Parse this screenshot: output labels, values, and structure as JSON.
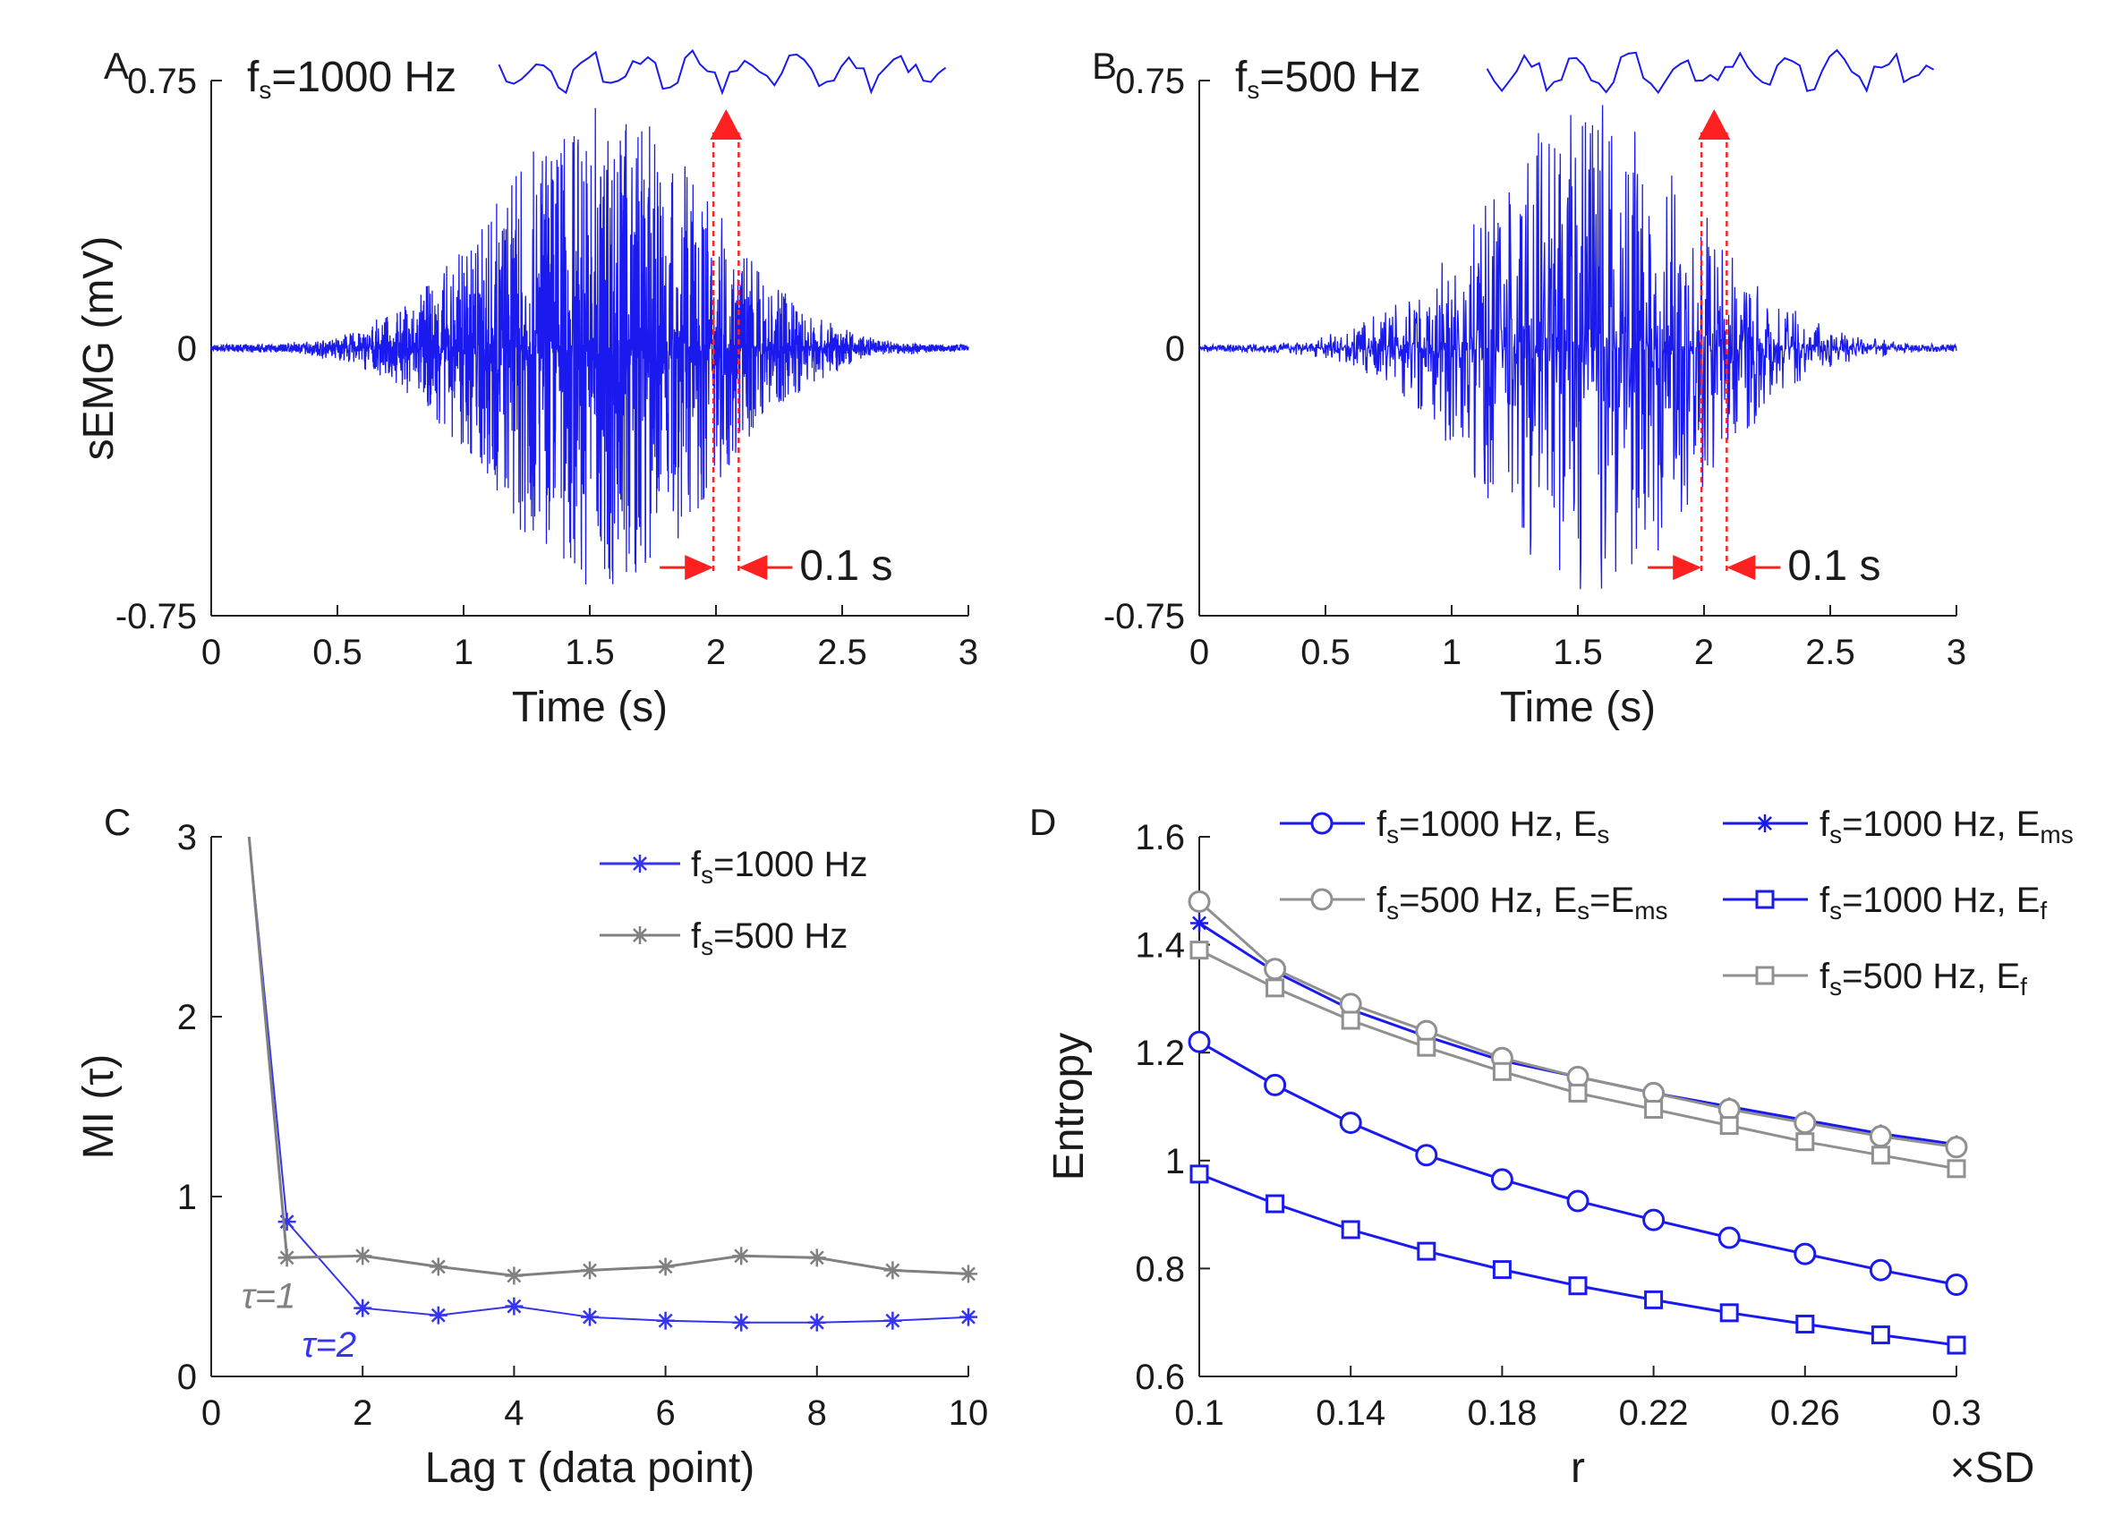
{
  "chart_data": [
    {
      "panel": "A",
      "type": "line",
      "xlabel": "Time (s)",
      "ylabel": "sEMG (mV)",
      "xlim": [
        0,
        3
      ],
      "ylim": [
        -0.75,
        0.75
      ],
      "xticks": [
        "0",
        "0.5",
        "1",
        "1.5",
        "2",
        "2.5",
        "3"
      ],
      "yticks": [
        "-0.75",
        "0",
        "0.75"
      ],
      "fs_label": "f",
      "fs_sub": "s",
      "fs_value": "=1000 Hz",
      "window_label": "0.1 s",
      "window_range": [
        1.99,
        2.09
      ],
      "signal_color": "#1a1aee",
      "marker_color": "#ff2020",
      "envelope": {
        "duration": 3.0,
        "peak_center": 1.55,
        "peak_amplitude": 0.55,
        "spread": 0.75
      }
    },
    {
      "panel": "B",
      "type": "line",
      "xlabel": "Time (s)",
      "ylabel": "",
      "xlim": [
        0,
        3
      ],
      "ylim": [
        -0.75,
        0.75
      ],
      "xticks": [
        "0",
        "0.5",
        "1",
        "1.5",
        "2",
        "2.5",
        "3"
      ],
      "yticks": [
        "-0.75",
        "0",
        "0.75"
      ],
      "fs_label": "f",
      "fs_sub": "s",
      "fs_value": "=500 Hz",
      "window_label": "0.1 s",
      "window_range": [
        1.99,
        2.09
      ],
      "signal_color": "#1a1aee",
      "marker_color": "#ff2020",
      "envelope": {
        "duration": 3.0,
        "peak_center": 1.55,
        "peak_amplitude": 0.55,
        "spread": 0.75
      }
    },
    {
      "panel": "C",
      "type": "line",
      "xlabel": "Lag τ (data point)",
      "ylabel": "MI (τ)",
      "xlim": [
        0,
        10
      ],
      "ylim": [
        0,
        3
      ],
      "xticks": [
        "0",
        "2",
        "4",
        "6",
        "8",
        "10"
      ],
      "yticks": [
        "0",
        "1",
        "2",
        "3"
      ],
      "series": [
        {
          "name_main": "f",
          "name_sub": "s",
          "name_rest": "=1000 Hz",
          "color": "#3535ee",
          "marker": "star",
          "x": [
            0.5,
            1,
            2,
            3,
            4,
            5,
            6,
            7,
            8,
            9,
            10
          ],
          "y": [
            3.0,
            0.86,
            0.38,
            0.34,
            0.39,
            0.33,
            0.31,
            0.3,
            0.3,
            0.31,
            0.33
          ]
        },
        {
          "name_main": "f",
          "name_sub": "s",
          "name_rest": "=500 Hz",
          "color": "#808080",
          "marker": "star",
          "x": [
            0.5,
            1,
            2,
            3,
            4,
            5,
            6,
            7,
            8,
            9,
            10
          ],
          "y": [
            3.0,
            0.66,
            0.67,
            0.61,
            0.56,
            0.59,
            0.61,
            0.67,
            0.66,
            0.59,
            0.57
          ]
        }
      ],
      "annotations": [
        {
          "text": "τ=1",
          "x": 0.4,
          "y": 0.45,
          "color": "#808080"
        },
        {
          "text": "τ=2",
          "x": 1.2,
          "y": 0.18,
          "color": "#3535ee"
        }
      ]
    },
    {
      "panel": "D",
      "type": "line",
      "xlabel": "r",
      "xunit": "×SD",
      "ylabel": "Entropy",
      "xlim": [
        0.1,
        0.3
      ],
      "ylim": [
        0.6,
        1.6
      ],
      "xticks": [
        "0.1",
        "0.14",
        "0.18",
        "0.22",
        "0.26",
        "0.3"
      ],
      "yticks": [
        "0.6",
        "0.8",
        "1",
        "1.2",
        "1.4",
        "1.6"
      ],
      "x": [
        0.1,
        0.12,
        0.14,
        0.16,
        0.18,
        0.2,
        0.22,
        0.24,
        0.26,
        0.28,
        0.3
      ],
      "series": [
        {
          "name_main": "f",
          "name_sub": "s",
          "name_rest": "=1000 Hz, E",
          "name_sub2": "s",
          "color": "#1a1aee",
          "marker": "circle",
          "y": [
            1.22,
            1.14,
            1.07,
            1.01,
            0.965,
            0.925,
            0.89,
            0.857,
            0.827,
            0.797,
            0.77
          ]
        },
        {
          "name_main": "f",
          "name_sub": "s",
          "name_rest": "=1000 Hz, E",
          "name_sub2": "ms",
          "color": "#1a1aee",
          "marker": "star",
          "y": [
            1.44,
            1.35,
            1.28,
            1.23,
            1.185,
            1.155,
            1.125,
            1.1,
            1.075,
            1.05,
            1.03
          ]
        },
        {
          "name_main": "f",
          "name_sub": "s",
          "name_rest": "=500 Hz, E",
          "name_sub2": "s",
          "name_rest2": "=E",
          "name_sub3": "ms",
          "color": "#909090",
          "marker": "circle",
          "y": [
            1.48,
            1.355,
            1.29,
            1.24,
            1.19,
            1.155,
            1.125,
            1.095,
            1.07,
            1.045,
            1.025
          ]
        },
        {
          "name_main": "f",
          "name_sub": "s",
          "name_rest": "=1000 Hz, E",
          "name_sub2": "f",
          "color": "#1a1aee",
          "marker": "square",
          "y": [
            0.975,
            0.92,
            0.872,
            0.832,
            0.798,
            0.768,
            0.742,
            0.718,
            0.697,
            0.677,
            0.658
          ]
        },
        {
          "name_main": "f",
          "name_sub": "s",
          "name_rest": "=500 Hz, E",
          "name_sub2": "f",
          "color": "#909090",
          "marker": "square",
          "y": [
            1.39,
            1.32,
            1.26,
            1.21,
            1.165,
            1.125,
            1.095,
            1.065,
            1.035,
            1.01,
            0.985
          ]
        }
      ]
    }
  ]
}
